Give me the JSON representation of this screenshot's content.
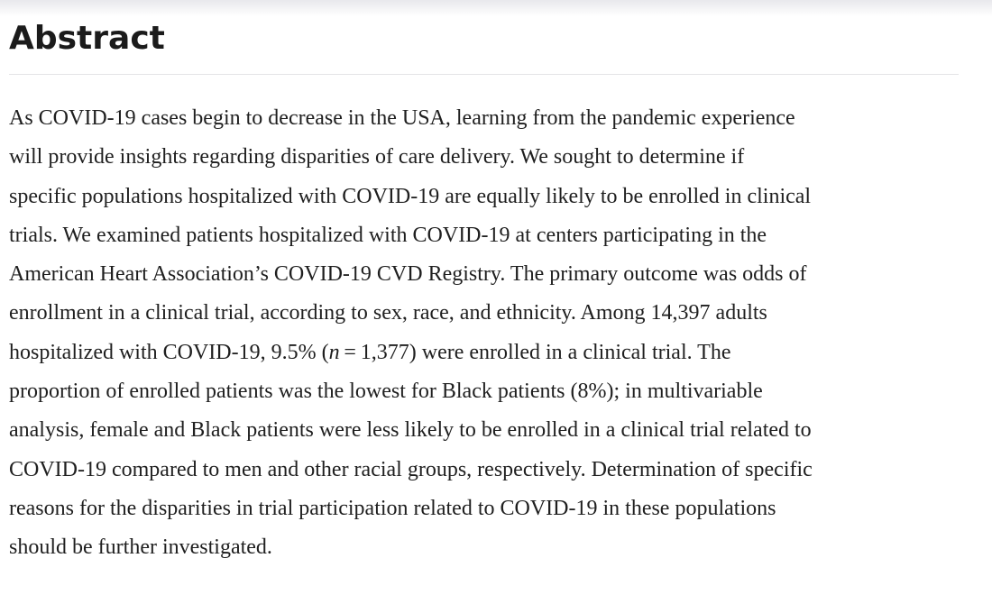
{
  "theme": {
    "background": "#ffffff",
    "top_fade_color": "#e8e8ec",
    "heading_color": "#1b1b1b",
    "body_text_color": "#1f1f1f",
    "divider_color": "#e4e4e6"
  },
  "abstract": {
    "heading": "Abstract",
    "lines": [
      {
        "segments": [
          {
            "text": "As COVID-19 cases begin to decrease in the USA, learning from the pandemic experience"
          }
        ]
      },
      {
        "segments": [
          {
            "text": "will provide insights regarding disparities of care delivery. We sought to determine if"
          }
        ]
      },
      {
        "segments": [
          {
            "text": "specific populations hospitalized with COVID-19 are equally likely to be enrolled in clinical"
          }
        ]
      },
      {
        "segments": [
          {
            "text": "trials. We examined patients hospitalized with COVID-19 at centers participating in the"
          }
        ]
      },
      {
        "segments": [
          {
            "text": "American Heart Association’s COVID-19 CVD Registry. The primary outcome was odds of"
          }
        ]
      },
      {
        "segments": [
          {
            "text": "enrollment in a clinical trial, according to sex, race, and ethnicity. Among 14,397 adults"
          }
        ]
      },
      {
        "segments": [
          {
            "text": "hospitalized with COVID-19, 9.5% ("
          },
          {
            "text": "n",
            "italic": true
          },
          {
            "text": " = 1,377) were enrolled in a clinical trial. The"
          }
        ]
      },
      {
        "segments": [
          {
            "text": "proportion of enrolled patients was the lowest for Black patients (8%); in multivariable"
          }
        ]
      },
      {
        "segments": [
          {
            "text": "analysis, female and Black patients were less likely to be enrolled in a clinical trial related to"
          }
        ]
      },
      {
        "segments": [
          {
            "text": "COVID-19 compared to men and other racial groups, respectively. Determination of specific"
          }
        ]
      },
      {
        "segments": [
          {
            "text": "reasons for the disparities in trial participation related to COVID-19 in these populations"
          }
        ]
      },
      {
        "segments": [
          {
            "text": "should be further investigated."
          }
        ]
      }
    ]
  }
}
